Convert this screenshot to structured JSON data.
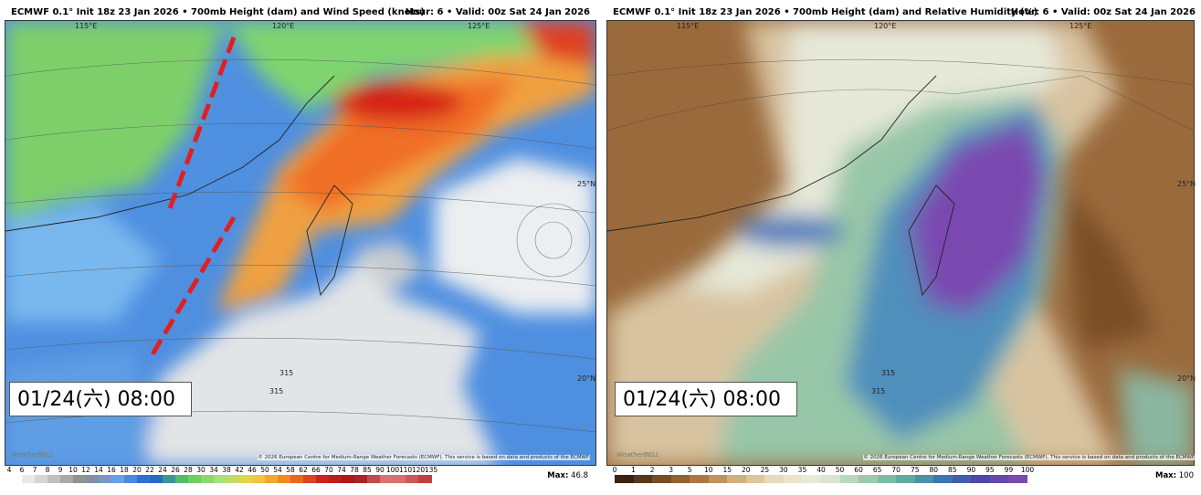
{
  "panels": [
    {
      "header": {
        "title": "ECMWF 0.1° Init 18z 23 Jan 2026 • 700mb Height (dam) and Wind Speed (knots)",
        "valid": "Hour: 6 • Valid: 00z Sat 24 Jan 2026"
      },
      "lon_labels": [
        "115°E",
        "120°E",
        "125°E"
      ],
      "lat_labels": [
        "25°N",
        "20°N"
      ],
      "contour_labels": [
        "315",
        "315"
      ],
      "time_box": "01/24(六) 08:00",
      "watermark": "WeatherBELL",
      "copyright": "© 2026 European Centre for Medium-Range Weather Forecasts (ECMWF). This service is based on data and products of the ECMWF.",
      "colorbar": [
        4,
        6,
        7,
        8,
        9,
        10,
        12,
        14,
        16,
        18,
        20,
        22,
        24,
        26,
        28,
        30,
        34,
        38,
        42,
        46,
        50,
        54,
        58,
        62,
        66,
        70,
        74,
        78,
        85,
        90,
        100,
        110,
        120,
        135
      ],
      "max_label": "Max:",
      "max": 46.8
    },
    {
      "header": {
        "title": "ECMWF 0.1° Init 18z 23 Jan 2026 • 700mb Height (dam) and Relative Humidity (%)",
        "valid": "Hour: 6 • Valid: 00z Sat 24 Jan 2026"
      },
      "lon_labels": [
        "115°E",
        "120°E",
        "125°E"
      ],
      "lat_labels": [
        "25°N",
        "20°N"
      ],
      "contour_labels": [
        "315",
        "315"
      ],
      "time_box": "01/24(六) 08:00",
      "watermark": "WeatherBELL",
      "copyright": "© 2026 European Centre for Medium-Range Weather Forecasts (ECMWF). This service is based on data and products of the ECMWF.",
      "colorbar": [
        0,
        1,
        2,
        3,
        5,
        10,
        15,
        20,
        25,
        30,
        35,
        40,
        50,
        60,
        65,
        70,
        75,
        80,
        85,
        90,
        95,
        99,
        100
      ],
      "max_label": "Max:",
      "max": 100.0
    }
  ]
}
